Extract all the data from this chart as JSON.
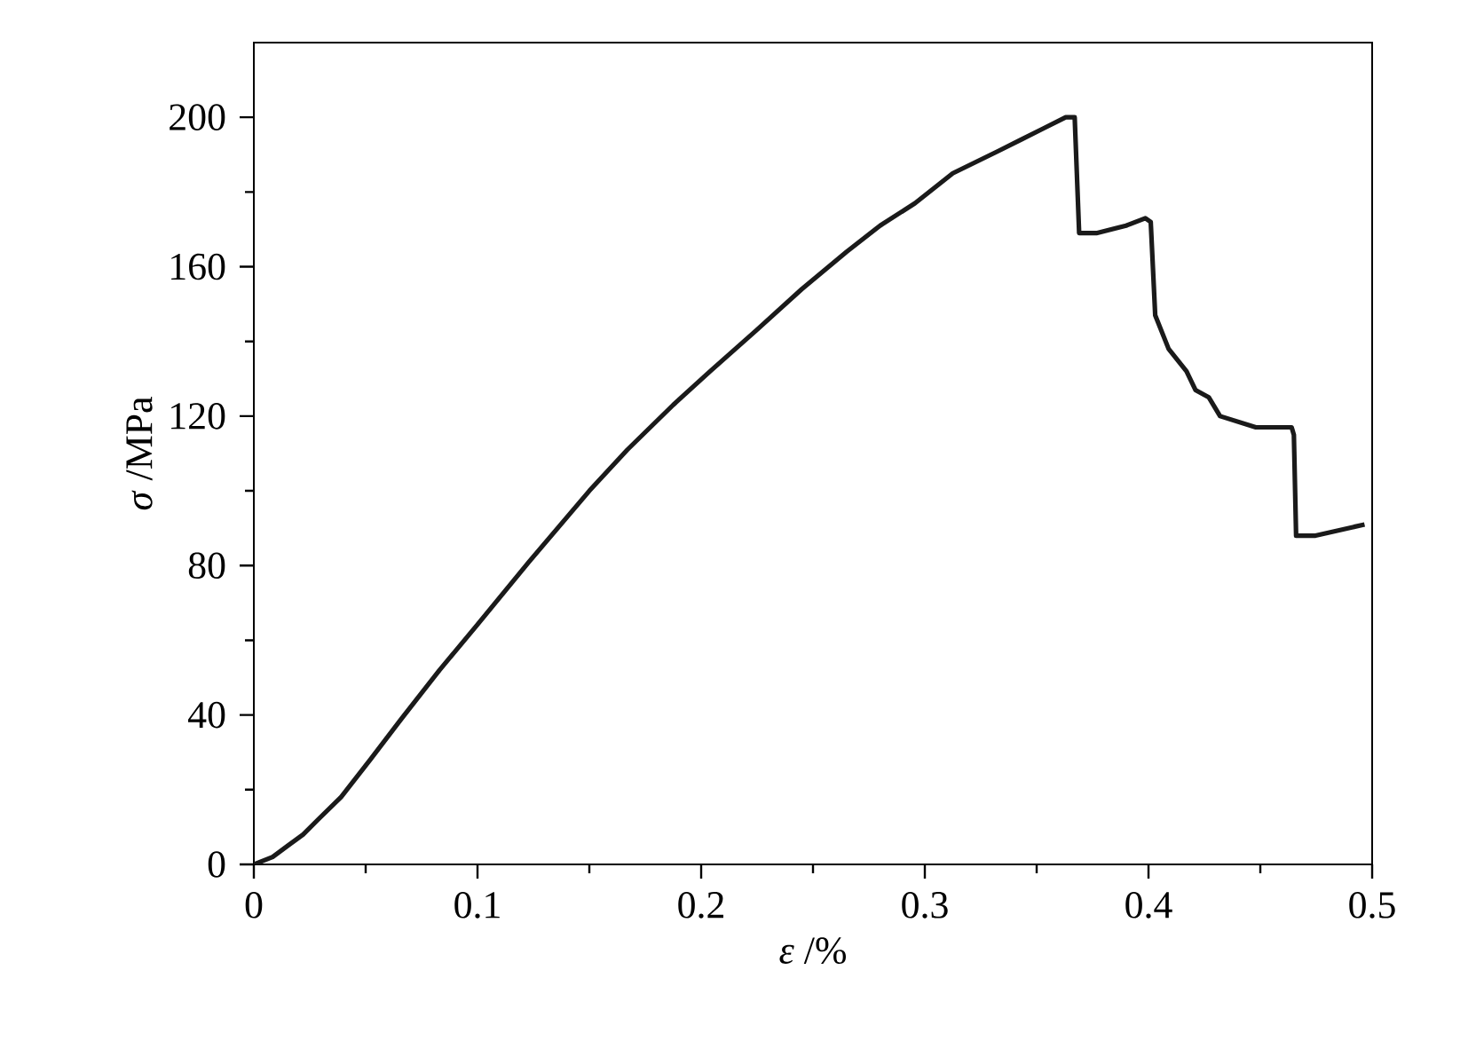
{
  "chart_data": {
    "type": "line",
    "xlabel": "*ε* /%",
    "ylabel": "*σ* /MPa",
    "xlim": [
      0,
      0.5
    ],
    "ylim": [
      0,
      220
    ],
    "xticks": [
      0,
      0.1,
      0.2,
      0.3,
      0.4,
      0.5
    ],
    "yticks": [
      0,
      40,
      80,
      120,
      160,
      200
    ],
    "marker": "none",
    "line_style": "solid",
    "series": [
      {
        "color": "#1a1a1a",
        "x": [
          0,
          0.0084,
          0.0152,
          0.022,
          0.0287,
          0.039,
          0.052,
          0.066,
          0.083,
          0.0997,
          0.123,
          0.15,
          0.167,
          0.1875,
          0.204,
          0.2247,
          0.245,
          0.265,
          0.28,
          0.2956,
          0.3125,
          0.333,
          0.343,
          0.353,
          0.363,
          0.367,
          0.369,
          0.3767,
          0.39,
          0.3986,
          0.401,
          0.403,
          0.409,
          0.417,
          0.421,
          0.427,
          0.432,
          0.448,
          0.464,
          0.465,
          0.466,
          0.4747,
          0.4966
        ],
        "values": [
          0,
          2,
          5,
          8,
          12,
          18,
          28,
          39,
          52,
          64,
          81,
          100,
          111,
          123,
          132,
          143,
          154,
          164,
          171,
          177,
          185,
          191,
          194,
          197,
          200,
          200,
          169,
          169,
          171,
          173,
          172,
          147,
          138,
          132,
          127,
          125,
          120,
          117,
          117,
          115,
          88,
          88,
          91
        ]
      }
    ]
  }
}
